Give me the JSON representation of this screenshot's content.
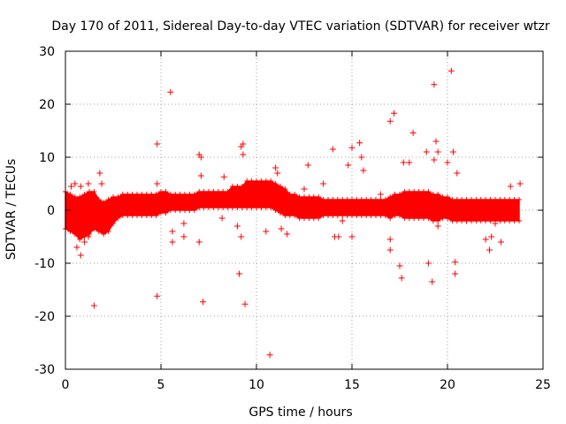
{
  "chart_data": {
    "type": "scatter",
    "title": "Day 170 of 2011, Sidereal Day-to-day VTEC variation (SDTVAR) for receiver wtzr",
    "xlabel": "GPS time / hours",
    "ylabel": "SDTVAR / TECUs",
    "xlim": [
      0,
      25
    ],
    "ylim": [
      -30,
      30
    ],
    "xticks": [
      0,
      5,
      10,
      15,
      20,
      25
    ],
    "yticks": [
      -30,
      -20,
      -10,
      0,
      10,
      20,
      30
    ],
    "grid": true,
    "marker": "+",
    "color": "#ff0000",
    "dense_band": {
      "x_start": 0.0,
      "x_end": 23.9,
      "x_step": 0.25,
      "center": [
        0.0,
        -0.5,
        -1.0,
        -1.5,
        -1.0,
        -0.5,
        0.0,
        -1.0,
        -1.5,
        -1.0,
        0.0,
        0.5,
        1.0,
        1.0,
        1.0,
        1.0,
        1.0,
        1.0,
        1.0,
        1.0,
        1.5,
        1.5,
        1.5,
        1.5,
        1.5,
        1.5,
        1.5,
        1.5,
        2.0,
        2.0,
        2.0,
        2.0,
        2.0,
        2.0,
        2.0,
        2.5,
        2.5,
        2.5,
        3.0,
        3.0,
        3.0,
        3.0,
        3.0,
        3.0,
        2.5,
        2.0,
        1.5,
        1.0,
        1.0,
        0.5,
        0.5,
        0.5,
        0.5,
        0.5,
        0.5,
        0.5,
        0.5,
        0.5,
        0.5,
        0.5,
        0.5,
        0.5,
        0.5,
        0.5,
        0.5,
        0.5,
        0.5,
        0.5,
        0.5,
        1.0,
        1.0,
        1.0,
        1.0,
        1.0,
        1.0,
        1.0,
        1.0,
        0.5,
        0.5,
        0.5,
        0.5,
        0.0,
        0.0,
        0.0,
        0.0,
        0.0,
        0.0,
        0.0,
        0.0,
        0.0,
        0.0,
        0.0,
        0.0,
        0.0,
        0.0,
        0.0
      ],
      "half_width": [
        3.5,
        3.5,
        3.5,
        4.0,
        4.0,
        4.0,
        3.5,
        3.0,
        3.0,
        3.0,
        2.5,
        2.0,
        2.0,
        2.0,
        2.0,
        2.0,
        2.0,
        2.0,
        2.0,
        2.0,
        2.0,
        2.0,
        1.5,
        1.5,
        1.5,
        1.5,
        1.5,
        1.5,
        1.5,
        1.5,
        1.5,
        1.5,
        1.5,
        1.5,
        1.5,
        2.0,
        2.0,
        2.0,
        2.5,
        2.5,
        2.5,
        2.5,
        2.5,
        2.5,
        2.5,
        2.5,
        2.5,
        2.0,
        2.0,
        2.0,
        2.0,
        2.0,
        2.0,
        2.0,
        1.5,
        1.5,
        1.5,
        1.5,
        1.5,
        1.5,
        1.5,
        1.5,
        1.5,
        1.5,
        1.5,
        1.5,
        1.5,
        1.5,
        2.0,
        2.0,
        2.0,
        2.5,
        2.5,
        2.5,
        2.5,
        2.5,
        2.5,
        2.5,
        2.5,
        2.0,
        2.0,
        2.0,
        2.0,
        2.0,
        2.0,
        2.0,
        2.0,
        2.0,
        2.0,
        2.0,
        2.0,
        2.0,
        2.0,
        2.0,
        2.0,
        2.0
      ]
    },
    "points": [
      [
        0.3,
        4.5
      ],
      [
        0.5,
        5.0
      ],
      [
        0.8,
        4.5
      ],
      [
        1.2,
        5.0
      ],
      [
        0.6,
        -7.0
      ],
      [
        0.8,
        -8.5
      ],
      [
        1.0,
        -6.0
      ],
      [
        1.2,
        -5.0
      ],
      [
        1.5,
        -18.0
      ],
      [
        1.8,
        7.0
      ],
      [
        1.9,
        5.0
      ],
      [
        4.8,
        12.5
      ],
      [
        4.8,
        5.0
      ],
      [
        4.8,
        -16.2
      ],
      [
        5.5,
        22.3
      ],
      [
        5.6,
        -4.0
      ],
      [
        5.6,
        -6.0
      ],
      [
        6.2,
        -2.5
      ],
      [
        6.2,
        -5.0
      ],
      [
        7.0,
        10.5
      ],
      [
        7.1,
        10.0
      ],
      [
        7.1,
        6.5
      ],
      [
        7.0,
        -6.0
      ],
      [
        7.2,
        -17.3
      ],
      [
        8.2,
        -1.5
      ],
      [
        8.3,
        6.3
      ],
      [
        9.0,
        -3.0
      ],
      [
        9.1,
        -12.0
      ],
      [
        9.2,
        -5.0
      ],
      [
        9.2,
        12.0
      ],
      [
        9.3,
        12.5
      ],
      [
        9.3,
        10.5
      ],
      [
        9.4,
        -17.7
      ],
      [
        10.5,
        -4.0
      ],
      [
        10.7,
        -27.3
      ],
      [
        11.0,
        8.0
      ],
      [
        11.1,
        7.0
      ],
      [
        11.3,
        -3.5
      ],
      [
        11.6,
        -4.5
      ],
      [
        12.5,
        4.0
      ],
      [
        12.7,
        8.5
      ],
      [
        13.5,
        5.0
      ],
      [
        14.0,
        11.5
      ],
      [
        14.1,
        -5.0
      ],
      [
        14.3,
        -5.0
      ],
      [
        14.5,
        -2.0
      ],
      [
        14.8,
        8.5
      ],
      [
        15.0,
        11.8
      ],
      [
        15.0,
        -5.0
      ],
      [
        15.4,
        12.7
      ],
      [
        15.5,
        10.0
      ],
      [
        15.6,
        7.5
      ],
      [
        16.5,
        3.0
      ],
      [
        17.0,
        16.8
      ],
      [
        17.2,
        18.3
      ],
      [
        17.0,
        -5.5
      ],
      [
        17.0,
        -7.5
      ],
      [
        17.5,
        -10.5
      ],
      [
        17.6,
        -12.8
      ],
      [
        17.7,
        9.0
      ],
      [
        18.2,
        14.6
      ],
      [
        18.0,
        9.0
      ],
      [
        18.9,
        11.0
      ],
      [
        19.0,
        -10.0
      ],
      [
        19.2,
        -13.5
      ],
      [
        19.3,
        9.5
      ],
      [
        19.3,
        23.7
      ],
      [
        19.4,
        13.0
      ],
      [
        19.5,
        11.0
      ],
      [
        19.5,
        -3.0
      ],
      [
        20.0,
        9.0
      ],
      [
        20.2,
        26.3
      ],
      [
        20.3,
        11.0
      ],
      [
        20.4,
        -9.8
      ],
      [
        20.5,
        7.0
      ],
      [
        20.4,
        -12.0
      ],
      [
        21.0,
        -2.0
      ],
      [
        22.0,
        -5.5
      ],
      [
        22.2,
        -7.5
      ],
      [
        22.3,
        -5.0
      ],
      [
        22.5,
        -2.5
      ],
      [
        22.8,
        -6.0
      ],
      [
        23.3,
        4.5
      ],
      [
        23.8,
        5.0
      ]
    ]
  }
}
